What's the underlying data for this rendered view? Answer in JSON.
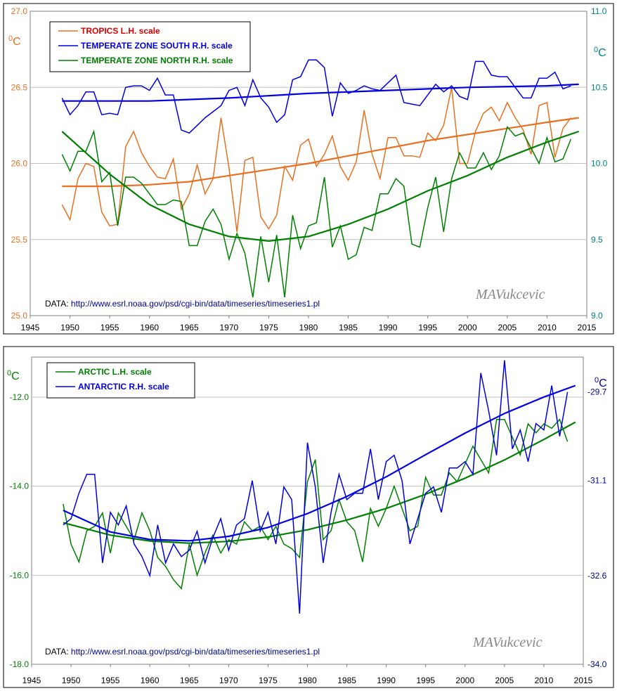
{
  "chart_data": [
    {
      "type": "line",
      "xlim": [
        1945,
        2015
      ],
      "x_ticks": [
        "1945",
        "1950",
        "1955",
        "1960",
        "1965",
        "1970",
        "1975",
        "1980",
        "1985",
        "1990",
        "1995",
        "2000",
        "2005",
        "2010",
        "2015"
      ],
      "left_axis": {
        "unit": "0C",
        "ylim": [
          25.0,
          27.0
        ],
        "ticks": [
          "25.0",
          "25.5",
          "26.0",
          "26.5",
          "27.0"
        ],
        "tick_color": "#e87020"
      },
      "right_axis": {
        "unit": "0C",
        "ylim": [
          9.0,
          11.0
        ],
        "ticks": [
          "9.0",
          "9.5",
          "10.0",
          "10.5",
          "11.0"
        ],
        "tick_color": "#008080"
      },
      "grid": true,
      "legend_position": "top-left",
      "source_label": "DATA:",
      "source_url": "http://www.esrl.noaa.gov/psd/cgi-bin/data/timeseries/timeseries1.pl",
      "signature": "MAVukcevic",
      "series": [
        {
          "name": "TROPICS L.H. scale",
          "axis": "left",
          "color": "#e87020",
          "legend_color": "#e00000",
          "x": [
            1949,
            1950,
            1951,
            1952,
            1953,
            1954,
            1955,
            1956,
            1957,
            1958,
            1959,
            1960,
            1961,
            1962,
            1963,
            1964,
            1965,
            1966,
            1967,
            1968,
            1969,
            1970,
            1971,
            1972,
            1973,
            1974,
            1975,
            1976,
            1977,
            1978,
            1979,
            1980,
            1981,
            1982,
            1983,
            1984,
            1985,
            1986,
            1987,
            1988,
            1989,
            1990,
            1991,
            1992,
            1993,
            1994,
            1995,
            1996,
            1997,
            1998,
            1999,
            2000,
            2001,
            2002,
            2003,
            2004,
            2005,
            2006,
            2007,
            2008,
            2009,
            2010,
            2011,
            2012,
            2013
          ],
          "values": [
            25.73,
            25.63,
            25.9,
            26.0,
            25.98,
            25.68,
            25.59,
            25.6,
            26.11,
            26.21,
            26.07,
            25.98,
            25.91,
            25.9,
            26.03,
            25.7,
            25.8,
            25.99,
            25.8,
            25.9,
            26.3,
            25.97,
            25.55,
            26.02,
            26.04,
            25.65,
            25.57,
            25.66,
            25.98,
            25.89,
            26.12,
            26.16,
            25.98,
            26.06,
            26.18,
            25.98,
            25.89,
            26.01,
            26.35,
            26.06,
            25.9,
            26.17,
            26.17,
            26.05,
            26.05,
            26.04,
            26.2,
            26.15,
            26.25,
            26.5,
            26.0,
            26.0,
            26.21,
            26.33,
            26.37,
            26.28,
            26.4,
            26.3,
            26.22,
            26.06,
            26.38,
            26.4,
            26.04,
            26.23,
            26.3
          ],
          "trend_x": [
            1949,
            1955,
            1960,
            1965,
            1970,
            1975,
            1980,
            1985,
            1990,
            1995,
            2000,
            2005,
            2010,
            2014
          ],
          "trend": [
            25.85,
            25.85,
            25.86,
            25.88,
            25.92,
            25.96,
            26.0,
            26.05,
            26.1,
            26.15,
            26.19,
            26.23,
            26.27,
            26.3
          ]
        },
        {
          "name": "TEMPERATE ZONE SOUTH R.H. scale",
          "axis": "right",
          "color": "#0000e0",
          "legend_color": "#0000e0",
          "x": [
            1949,
            1950,
            1951,
            1952,
            1953,
            1954,
            1955,
            1956,
            1957,
            1958,
            1959,
            1960,
            1961,
            1962,
            1963,
            1964,
            1965,
            1966,
            1967,
            1968,
            1969,
            1970,
            1971,
            1972,
            1973,
            1974,
            1975,
            1976,
            1977,
            1978,
            1979,
            1980,
            1981,
            1982,
            1983,
            1984,
            1985,
            1986,
            1987,
            1988,
            1989,
            1990,
            1991,
            1992,
            1993,
            1994,
            1995,
            1996,
            1997,
            1998,
            1999,
            2000,
            2001,
            2002,
            2003,
            2004,
            2005,
            2006,
            2007,
            2008,
            2009,
            2010,
            2011,
            2012,
            2013
          ],
          "values": [
            10.43,
            10.32,
            10.38,
            10.47,
            10.47,
            10.32,
            10.33,
            10.32,
            10.5,
            10.51,
            10.51,
            10.48,
            10.56,
            10.45,
            10.45,
            10.22,
            10.2,
            10.25,
            10.3,
            10.34,
            10.38,
            10.48,
            10.5,
            10.38,
            10.55,
            10.43,
            10.37,
            10.27,
            10.32,
            10.55,
            10.57,
            10.68,
            10.68,
            10.63,
            10.31,
            10.53,
            10.46,
            10.48,
            10.51,
            10.49,
            10.48,
            10.53,
            10.58,
            10.4,
            10.39,
            10.38,
            10.45,
            10.52,
            10.47,
            10.51,
            10.44,
            10.42,
            10.67,
            10.67,
            10.58,
            10.57,
            10.57,
            10.5,
            10.43,
            10.43,
            10.56,
            10.56,
            10.6,
            10.49,
            10.51
          ],
          "trend_x": [
            1949,
            1960,
            1970,
            1980,
            1990,
            2000,
            2010,
            2014
          ],
          "trend": [
            10.41,
            10.41,
            10.43,
            10.46,
            10.48,
            10.5,
            10.51,
            10.52
          ]
        },
        {
          "name": "TEMPERATE ZONE NORTH R.H. scale",
          "axis": "right",
          "color": "#008000",
          "legend_color": "#008000",
          "x": [
            1949,
            1950,
            1951,
            1952,
            1953,
            1954,
            1955,
            1956,
            1957,
            1958,
            1959,
            1960,
            1961,
            1962,
            1963,
            1964,
            1965,
            1966,
            1967,
            1968,
            1969,
            1970,
            1971,
            1972,
            1973,
            1974,
            1975,
            1976,
            1977,
            1978,
            1979,
            1980,
            1981,
            1982,
            1983,
            1984,
            1985,
            1986,
            1987,
            1988,
            1989,
            1990,
            1991,
            1992,
            1993,
            1994,
            1995,
            1996,
            1997,
            1998,
            1999,
            2000,
            2001,
            2002,
            2003,
            2004,
            2005,
            2006,
            2007,
            2008,
            2009,
            2010,
            2011,
            2012,
            2013
          ],
          "values": [
            10.06,
            9.95,
            10.08,
            10.08,
            10.21,
            9.88,
            9.94,
            9.59,
            9.91,
            9.91,
            9.87,
            9.8,
            9.73,
            9.73,
            9.76,
            9.75,
            9.46,
            9.46,
            9.62,
            9.7,
            9.6,
            9.37,
            9.54,
            9.41,
            9.12,
            9.52,
            9.22,
            9.53,
            9.12,
            9.66,
            9.44,
            9.59,
            9.61,
            9.91,
            9.45,
            9.59,
            9.37,
            9.4,
            9.58,
            9.56,
            9.8,
            9.8,
            9.9,
            9.85,
            9.47,
            9.45,
            9.71,
            9.91,
            9.55,
            9.9,
            10.07,
            9.97,
            9.97,
            10.07,
            9.96,
            10.05,
            10.24,
            10.18,
            10.2,
            10.1,
            10.0,
            10.17,
            10.01,
            10.03,
            10.16
          ],
          "trend_x": [
            1949,
            1955,
            1960,
            1965,
            1970,
            1975,
            1980,
            1985,
            1990,
            1995,
            2000,
            2005,
            2010,
            2014
          ],
          "trend": [
            10.21,
            9.93,
            9.73,
            9.6,
            9.52,
            9.49,
            9.52,
            9.6,
            9.7,
            9.82,
            9.92,
            10.04,
            10.14,
            10.21
          ]
        }
      ]
    },
    {
      "type": "line",
      "xlim": [
        1945,
        2015
      ],
      "x_ticks": [
        "1945",
        "1950",
        "1955",
        "1960",
        "1965",
        "1970",
        "1975",
        "1980",
        "1985",
        "1990",
        "1995",
        "2000",
        "2005",
        "2010",
        "2015"
      ],
      "left_axis": {
        "unit": "0C",
        "ylim": [
          -18.0,
          -11.1
        ],
        "ticks": [
          "-18.0",
          "-16.0",
          "-14.0",
          "-12.0"
        ],
        "tick_values": [
          -18.0,
          -16.0,
          -14.0,
          -12.0
        ],
        "tick_color": "#008000"
      },
      "right_axis": {
        "unit": "0C",
        "ylim": [
          -34.0,
          -29.15
        ],
        "ticks": [
          "-34.0",
          "-32.6",
          "-31.1",
          "-29.7"
        ],
        "tick_values": [
          -34.0,
          -32.6,
          -31.1,
          -29.7
        ],
        "tick_color": "#0000a0"
      },
      "grid": true,
      "legend_position": "top-left",
      "source_label": "DATA:",
      "source_url": "http://www.esrl.noaa.gov/psd/cgi-bin/data/timeseries/timeseries1.pl",
      "signature": "MAVukcevic",
      "series": [
        {
          "name": "ARCTIC  L.H. scale",
          "axis": "left",
          "color": "#008000",
          "legend_color": "#008000",
          "x": [
            1949,
            1950,
            1951,
            1952,
            1953,
            1954,
            1955,
            1956,
            1957,
            1958,
            1959,
            1960,
            1961,
            1962,
            1963,
            1964,
            1965,
            1966,
            1967,
            1968,
            1969,
            1970,
            1971,
            1972,
            1973,
            1974,
            1975,
            1976,
            1977,
            1978,
            1979,
            1980,
            1981,
            1982,
            1983,
            1984,
            1985,
            1986,
            1987,
            1988,
            1989,
            1990,
            1991,
            1992,
            1993,
            1994,
            1995,
            1996,
            1997,
            1998,
            1999,
            2000,
            2001,
            2002,
            2003,
            2004,
            2005,
            2006,
            2007,
            2008,
            2009,
            2010,
            2011,
            2012,
            2013
          ],
          "values": [
            -14.4,
            -15.3,
            -15.7,
            -15.0,
            -14.9,
            -14.6,
            -15.5,
            -14.6,
            -14.9,
            -15.2,
            -14.6,
            -15.0,
            -15.6,
            -15.8,
            -16.1,
            -16.3,
            -15.3,
            -16.0,
            -15.5,
            -15.1,
            -15.5,
            -15.2,
            -15.3,
            -14.8,
            -15.0,
            -14.9,
            -15.2,
            -14.9,
            -15.3,
            -15.4,
            -15.6,
            -13.9,
            -13.4,
            -15.2,
            -15.0,
            -14.3,
            -14.8,
            -15.0,
            -15.7,
            -14.5,
            -14.9,
            -14.5,
            -14.0,
            -14.5,
            -15.0,
            -14.9,
            -13.8,
            -14.2,
            -14.2,
            -13.7,
            -13.9,
            -13.5,
            -13.1,
            -13.4,
            -13.7,
            -12.5,
            -12.5,
            -12.9,
            -13.3,
            -12.6,
            -12.8,
            -12.6,
            -12.7,
            -12.5,
            -13.0
          ],
          "trend_x": [
            1949,
            1955,
            1960,
            1965,
            1970,
            1975,
            1980,
            1985,
            1990,
            1995,
            2000,
            2005,
            2010,
            2014
          ],
          "trend": [
            -14.82,
            -15.1,
            -15.23,
            -15.28,
            -15.24,
            -15.14,
            -14.98,
            -14.76,
            -14.5,
            -14.18,
            -13.82,
            -13.41,
            -12.95,
            -12.56
          ]
        },
        {
          "name": "ANTARCTIC R.H. scale",
          "axis": "right",
          "color": "#0000e0",
          "legend_color": "#0000e0",
          "x": [
            1949,
            1950,
            1951,
            1952,
            1953,
            1954,
            1955,
            1956,
            1957,
            1958,
            1959,
            1960,
            1961,
            1962,
            1963,
            1964,
            1965,
            1966,
            1967,
            1968,
            1969,
            1970,
            1971,
            1972,
            1973,
            1974,
            1975,
            1976,
            1977,
            1978,
            1979,
            1980,
            1981,
            1982,
            1983,
            1984,
            1985,
            1986,
            1987,
            1988,
            1989,
            1990,
            1991,
            1992,
            1993,
            1994,
            1995,
            1996,
            1997,
            1998,
            1999,
            2000,
            2001,
            2002,
            2003,
            2004,
            2005,
            2006,
            2007,
            2008,
            2009,
            2010,
            2011,
            2012,
            2013
          ],
          "values": [
            -31.8,
            -31.7,
            -31.3,
            -31.0,
            -31.0,
            -32.4,
            -31.6,
            -31.8,
            -31.5,
            -32.1,
            -32.3,
            -32.6,
            -31.8,
            -32.4,
            -32.1,
            -32.3,
            -32.2,
            -31.9,
            -32.4,
            -32.0,
            -31.7,
            -32.2,
            -31.8,
            -31.7,
            -31.1,
            -31.9,
            -31.6,
            -32.1,
            -31.2,
            -31.4,
            -33.2,
            -30.5,
            -31.2,
            -32.4,
            -31.6,
            -31.0,
            -31.4,
            -31.3,
            -31.3,
            -30.6,
            -31.4,
            -30.8,
            -30.7,
            -31.1,
            -32.1,
            -31.7,
            -31.3,
            -31.2,
            -31.6,
            -30.9,
            -30.9,
            -30.8,
            -31.0,
            -29.4,
            -30.0,
            -30.7,
            -29.2,
            -30.6,
            -30.3,
            -30.8,
            -30.2,
            -30.3,
            -29.6,
            -30.4,
            -29.7
          ],
          "trend_x": [
            1949,
            1955,
            1960,
            1965,
            1970,
            1975,
            1980,
            1985,
            1990,
            1995,
            2000,
            2005,
            2010,
            2014
          ],
          "trend": [
            -31.57,
            -31.91,
            -32.03,
            -32.05,
            -31.98,
            -31.84,
            -31.62,
            -31.35,
            -31.04,
            -30.69,
            -30.35,
            -30.04,
            -29.78,
            -29.6
          ]
        }
      ]
    }
  ]
}
